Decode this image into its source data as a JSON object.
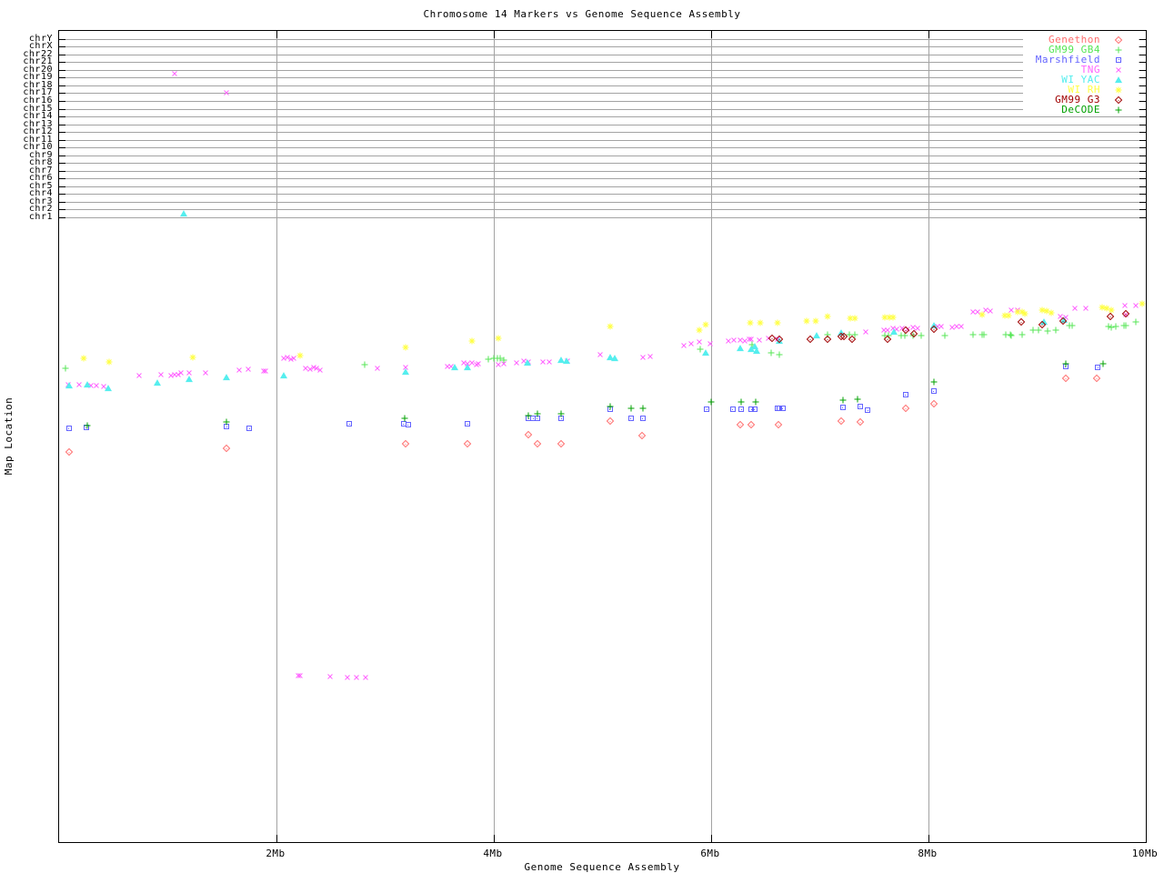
{
  "chart_data": {
    "type": "scatter",
    "title": "Chromosome 14 Markers vs Genome Sequence Assembly",
    "xlabel": "Genome Sequence Assembly",
    "ylabel": "Map Location",
    "xlim": [
      0,
      10
    ],
    "x_unit": "Mb",
    "grid": true,
    "legend_position": "top-right-inside",
    "x_ticks": [
      {
        "label": "2Mb",
        "value": 2
      },
      {
        "label": "4Mb",
        "value": 4
      },
      {
        "label": "6Mb",
        "value": 6
      },
      {
        "label": "8Mb",
        "value": 8
      },
      {
        "label": "10Mb",
        "value": 10
      }
    ],
    "y_chromosome_rows": [
      "chrY",
      "chrX",
      "chr22",
      "chr21",
      "chr20",
      "chr19",
      "chr18",
      "chr17",
      "chr16",
      "chr15",
      "chr14",
      "chr13",
      "chr12",
      "chr11",
      "chr10",
      "chr9",
      "chr8",
      "chr7",
      "chr6",
      "chr5",
      "chr4",
      "chr3",
      "chr2",
      "chr1"
    ],
    "y_encoding": "second value of each point is the screen pixel row in the 960px-tall image (plot top=33, plot bottom=925); chromosome band gridlines chrY..chr1 occupy rows 42..238; map-location scale below is unlabeled",
    "series": [
      {
        "id": "genethon",
        "name": "Genethon",
        "color": "#ff6e6e",
        "symbol": "diamond",
        "points": [
          [
            0.09,
            496
          ],
          [
            1.54,
            492
          ],
          [
            3.19,
            487
          ],
          [
            3.76,
            487
          ],
          [
            4.32,
            477
          ],
          [
            4.4,
            487
          ],
          [
            4.62,
            487
          ],
          [
            5.07,
            462
          ],
          [
            5.36,
            478
          ],
          [
            6.27,
            466
          ],
          [
            6.37,
            466
          ],
          [
            6.62,
            466
          ],
          [
            7.2,
            462
          ],
          [
            7.37,
            463
          ],
          [
            7.79,
            448
          ],
          [
            8.05,
            443
          ],
          [
            9.26,
            415
          ],
          [
            9.55,
            415
          ]
        ]
      },
      {
        "id": "gm99-gb4",
        "name": "GM99 GB4",
        "color": "#55e655",
        "symbol": "plus",
        "points": [
          [
            0.06,
            404
          ],
          [
            2.81,
            400
          ],
          [
            3.95,
            394
          ],
          [
            4.0,
            393
          ],
          [
            4.03,
            393
          ],
          [
            4.06,
            393
          ],
          [
            4.09,
            395
          ],
          [
            5.9,
            383
          ],
          [
            6.38,
            378
          ],
          [
            6.55,
            387
          ],
          [
            6.63,
            389
          ],
          [
            7.07,
            367
          ],
          [
            7.27,
            367
          ],
          [
            7.32,
            367
          ],
          [
            7.6,
            368
          ],
          [
            7.63,
            368
          ],
          [
            7.75,
            368
          ],
          [
            7.78,
            368
          ],
          [
            7.86,
            368
          ],
          [
            7.93,
            368
          ],
          [
            8.15,
            368
          ],
          [
            8.41,
            367
          ],
          [
            8.49,
            367
          ],
          [
            8.51,
            367
          ],
          [
            8.71,
            367
          ],
          [
            8.75,
            367
          ],
          [
            8.76,
            368
          ],
          [
            8.86,
            367
          ],
          [
            8.96,
            362
          ],
          [
            9.01,
            362
          ],
          [
            9.1,
            363
          ],
          [
            9.17,
            362
          ],
          [
            9.3,
            357
          ],
          [
            9.32,
            357
          ],
          [
            9.66,
            358
          ],
          [
            9.68,
            359
          ],
          [
            9.72,
            358
          ],
          [
            9.8,
            357
          ],
          [
            9.82,
            357
          ],
          [
            9.91,
            353
          ]
        ]
      },
      {
        "id": "marshfield",
        "name": "Marshfield",
        "color": "#6464ff",
        "symbol": "square",
        "points": [
          [
            0.09,
            470
          ],
          [
            0.25,
            469
          ],
          [
            1.54,
            468
          ],
          [
            1.75,
            470
          ],
          [
            2.67,
            465
          ],
          [
            3.17,
            465
          ],
          [
            3.21,
            466
          ],
          [
            3.76,
            465
          ],
          [
            4.32,
            459
          ],
          [
            4.36,
            459
          ],
          [
            4.4,
            459
          ],
          [
            4.62,
            459
          ],
          [
            5.07,
            449
          ],
          [
            5.26,
            459
          ],
          [
            5.37,
            459
          ],
          [
            5.96,
            449
          ],
          [
            6.2,
            449
          ],
          [
            6.28,
            449
          ],
          [
            6.37,
            449
          ],
          [
            6.4,
            449
          ],
          [
            6.61,
            448
          ],
          [
            6.63,
            448
          ],
          [
            6.66,
            448
          ],
          [
            7.21,
            447
          ],
          [
            7.37,
            446
          ],
          [
            7.44,
            450
          ],
          [
            7.79,
            433
          ],
          [
            8.05,
            429
          ],
          [
            9.26,
            402
          ],
          [
            9.56,
            403
          ]
        ]
      },
      {
        "id": "tng",
        "name": "TNG",
        "color": "#ff64ff",
        "symbol": "cross",
        "points": [
          [
            1.06,
            80
          ],
          [
            1.54,
            101
          ],
          [
            0.08,
            422
          ],
          [
            0.18,
            422
          ],
          [
            0.29,
            423
          ],
          [
            0.34,
            423
          ],
          [
            0.41,
            424
          ],
          [
            0.74,
            412
          ],
          [
            0.94,
            411
          ],
          [
            1.03,
            412
          ],
          [
            1.06,
            411
          ],
          [
            1.1,
            411
          ],
          [
            1.12,
            409
          ],
          [
            1.2,
            409
          ],
          [
            1.35,
            409
          ],
          [
            1.66,
            406
          ],
          [
            1.74,
            405
          ],
          [
            1.88,
            407
          ],
          [
            1.9,
            407
          ],
          [
            2.07,
            393
          ],
          [
            2.1,
            392
          ],
          [
            2.13,
            394
          ],
          [
            2.16,
            393
          ],
          [
            2.27,
            404
          ],
          [
            2.31,
            405
          ],
          [
            2.34,
            403
          ],
          [
            2.37,
            404
          ],
          [
            2.4,
            406
          ],
          [
            2.93,
            404
          ],
          [
            3.19,
            403
          ],
          [
            3.57,
            402
          ],
          [
            3.61,
            402
          ],
          [
            3.72,
            398
          ],
          [
            3.76,
            399
          ],
          [
            3.8,
            398
          ],
          [
            3.84,
            400
          ],
          [
            3.86,
            399
          ],
          [
            4.04,
            400
          ],
          [
            4.09,
            399
          ],
          [
            4.21,
            398
          ],
          [
            4.28,
            396
          ],
          [
            4.32,
            397
          ],
          [
            4.45,
            397
          ],
          [
            4.51,
            397
          ],
          [
            4.68,
            396
          ],
          [
            4.98,
            389
          ],
          [
            5.37,
            392
          ],
          [
            5.44,
            391
          ],
          [
            5.75,
            379
          ],
          [
            5.82,
            377
          ],
          [
            5.89,
            375
          ],
          [
            5.99,
            377
          ],
          [
            6.16,
            374
          ],
          [
            6.21,
            373
          ],
          [
            6.27,
            373
          ],
          [
            6.31,
            374
          ],
          [
            6.35,
            372
          ],
          [
            6.37,
            372
          ],
          [
            6.44,
            373
          ],
          [
            6.53,
            371
          ],
          [
            6.61,
            372
          ],
          [
            7.42,
            364
          ],
          [
            7.59,
            362
          ],
          [
            7.62,
            362
          ],
          [
            7.67,
            360
          ],
          [
            7.71,
            361
          ],
          [
            7.76,
            360
          ],
          [
            7.81,
            361
          ],
          [
            7.86,
            359
          ],
          [
            7.9,
            360
          ],
          [
            8.08,
            358
          ],
          [
            8.12,
            358
          ],
          [
            8.22,
            359
          ],
          [
            8.26,
            358
          ],
          [
            8.3,
            358
          ],
          [
            8.41,
            342
          ],
          [
            8.45,
            342
          ],
          [
            8.53,
            340
          ],
          [
            8.57,
            341
          ],
          [
            8.76,
            340
          ],
          [
            8.82,
            340
          ],
          [
            9.21,
            347
          ],
          [
            9.26,
            348
          ],
          [
            9.35,
            338
          ],
          [
            9.45,
            338
          ],
          [
            9.81,
            335
          ],
          [
            9.82,
            345
          ],
          [
            9.91,
            335
          ],
          [
            2.2,
            742
          ],
          [
            2.22,
            742
          ],
          [
            2.49,
            743
          ],
          [
            2.65,
            744
          ],
          [
            2.74,
            744
          ],
          [
            2.82,
            744
          ]
        ]
      },
      {
        "id": "wi-yac",
        "name": "WI YAC",
        "color": "#55eeee",
        "symbol": "triangle",
        "points": [
          [
            1.15,
            234
          ],
          [
            0.09,
            423
          ],
          [
            0.26,
            422
          ],
          [
            0.45,
            426
          ],
          [
            0.9,
            420
          ],
          [
            1.2,
            416
          ],
          [
            1.54,
            414
          ],
          [
            2.07,
            412
          ],
          [
            3.19,
            408
          ],
          [
            3.64,
            403
          ],
          [
            3.76,
            403
          ],
          [
            4.31,
            398
          ],
          [
            4.62,
            395
          ],
          [
            4.67,
            396
          ],
          [
            5.07,
            392
          ],
          [
            5.11,
            393
          ],
          [
            5.95,
            387
          ],
          [
            6.27,
            382
          ],
          [
            6.37,
            383
          ],
          [
            6.4,
            380
          ],
          [
            6.42,
            385
          ],
          [
            6.63,
            374
          ],
          [
            6.97,
            368
          ],
          [
            7.2,
            365
          ],
          [
            7.68,
            364
          ],
          [
            8.05,
            357
          ],
          [
            9.06,
            353
          ],
          [
            9.25,
            351
          ]
        ]
      },
      {
        "id": "wi-rh",
        "name": "WI RH",
        "color": "#ffff44",
        "symbol": "star",
        "points": [
          [
            0.23,
            393
          ],
          [
            0.46,
            397
          ],
          [
            1.23,
            392
          ],
          [
            2.22,
            390
          ],
          [
            3.19,
            381
          ],
          [
            3.8,
            374
          ],
          [
            4.04,
            371
          ],
          [
            5.07,
            358
          ],
          [
            5.89,
            362
          ],
          [
            5.95,
            356
          ],
          [
            6.36,
            354
          ],
          [
            6.45,
            354
          ],
          [
            6.61,
            354
          ],
          [
            6.88,
            352
          ],
          [
            6.96,
            352
          ],
          [
            7.07,
            347
          ],
          [
            7.28,
            349
          ],
          [
            7.32,
            349
          ],
          [
            7.6,
            348
          ],
          [
            7.64,
            348
          ],
          [
            7.67,
            348
          ],
          [
            8.49,
            345
          ],
          [
            8.7,
            346
          ],
          [
            8.74,
            346
          ],
          [
            8.82,
            342
          ],
          [
            8.86,
            342
          ],
          [
            8.89,
            344
          ],
          [
            9.05,
            340
          ],
          [
            9.09,
            341
          ],
          [
            9.13,
            343
          ],
          [
            9.6,
            337
          ],
          [
            9.64,
            338
          ],
          [
            9.68,
            340
          ],
          [
            9.97,
            333
          ]
        ]
      },
      {
        "id": "gm99-g3",
        "name": "GM99 G3",
        "color": "#a00000",
        "symbol": "diamond",
        "points": [
          [
            6.56,
            371
          ],
          [
            6.63,
            372
          ],
          [
            6.91,
            372
          ],
          [
            7.07,
            372
          ],
          [
            7.2,
            369
          ],
          [
            7.22,
            369
          ],
          [
            7.3,
            372
          ],
          [
            7.62,
            372
          ],
          [
            7.79,
            362
          ],
          [
            7.87,
            366
          ],
          [
            8.05,
            361
          ],
          [
            8.85,
            353
          ],
          [
            9.05,
            356
          ],
          [
            9.24,
            352
          ],
          [
            9.67,
            347
          ],
          [
            9.82,
            344
          ]
        ]
      },
      {
        "id": "decode",
        "name": "DeCODE",
        "color": "#00a000",
        "symbol": "plus",
        "points": [
          [
            0.26,
            467
          ],
          [
            1.54,
            463
          ],
          [
            3.18,
            459
          ],
          [
            4.32,
            456
          ],
          [
            4.4,
            454
          ],
          [
            4.62,
            454
          ],
          [
            5.07,
            446
          ],
          [
            5.26,
            448
          ],
          [
            5.37,
            448
          ],
          [
            6.0,
            441
          ],
          [
            6.28,
            441
          ],
          [
            6.41,
            441
          ],
          [
            7.21,
            439
          ],
          [
            7.35,
            438
          ],
          [
            8.05,
            419
          ],
          [
            9.26,
            399
          ],
          [
            9.61,
            399
          ]
        ]
      }
    ]
  },
  "legend": [
    {
      "id": "genethon",
      "name": "Genethon",
      "color": "#ff6e6e",
      "symbol": "diamond"
    },
    {
      "id": "gm99-gb4",
      "name": "GM99 GB4",
      "color": "#55e655",
      "symbol": "plus"
    },
    {
      "id": "marshfield",
      "name": "Marshfield",
      "color": "#6464ff",
      "symbol": "square"
    },
    {
      "id": "tng",
      "name": "TNG",
      "color": "#ff64ff",
      "symbol": "cross"
    },
    {
      "id": "wi-yac",
      "name": "WI YAC",
      "color": "#55eeee",
      "symbol": "triangle"
    },
    {
      "id": "wi-rh",
      "name": "WI RH",
      "color": "#ffff44",
      "symbol": "star"
    },
    {
      "id": "gm99-g3",
      "name": "GM99 G3",
      "color": "#a00000",
      "symbol": "diamond"
    },
    {
      "id": "decode",
      "name": "DeCODE",
      "color": "#00a000",
      "symbol": "plus"
    }
  ]
}
